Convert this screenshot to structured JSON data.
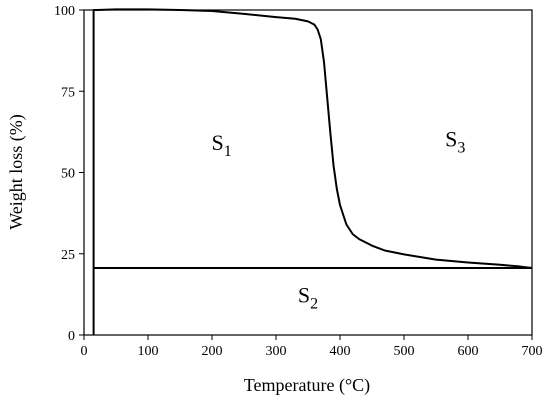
{
  "chart_data": {
    "type": "line",
    "title": "",
    "xlabel": "Temperature (°C)",
    "ylabel": "Weight loss (%)",
    "xlim": [
      0,
      700
    ],
    "ylim": [
      0,
      100
    ],
    "xticks": [
      0,
      100,
      200,
      300,
      400,
      500,
      600,
      700
    ],
    "yticks": [
      0,
      25,
      50,
      75,
      100
    ],
    "grid": false,
    "series": [
      {
        "x": [
          15,
          15,
          20,
          50,
          100,
          150,
          200,
          250,
          300,
          330,
          350,
          360,
          365,
          370,
          375,
          380,
          385,
          390,
          395,
          400,
          410,
          420,
          430,
          440,
          450,
          470,
          500,
          550,
          600,
          650,
          680,
          700
        ],
        "y": [
          0,
          100,
          100,
          100.2,
          100.2,
          100,
          99.7,
          98.8,
          97.8,
          97.3,
          96.5,
          95.5,
          94,
          91,
          84,
          73,
          62,
          52,
          45,
          40,
          34,
          31,
          29.5,
          28.5,
          27.5,
          26,
          24.8,
          23.2,
          22.3,
          21.6,
          21.1,
          20.6
        ],
        "color": "#000000"
      },
      {
        "x": [
          15,
          700
        ],
        "y": [
          20.6,
          20.6
        ],
        "color": "#000000"
      }
    ],
    "annotations": [
      {
        "label": "S",
        "subscript": "1",
        "x": 215,
        "y": 57
      },
      {
        "label": "S",
        "subscript": "2",
        "x": 350,
        "y": 10
      },
      {
        "label": "S",
        "subscript": "3",
        "x": 580,
        "y": 58
      }
    ]
  }
}
